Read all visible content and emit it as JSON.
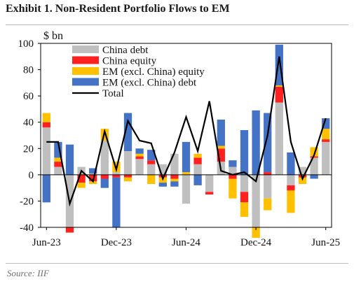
{
  "chart_data": {
    "type": "bar",
    "title": "Exhibit 1. Non-Resident Portfolio Flows to EM",
    "ylabel": "$ bn",
    "ylim": [
      -40,
      100
    ],
    "yticks": [
      -40,
      -20,
      0,
      20,
      40,
      60,
      80,
      100
    ],
    "stacked": true,
    "grid": false,
    "legend_position": "top-left",
    "x_tick_labels": [
      {
        "label": "Jun-23",
        "index": 0
      },
      {
        "label": "Dec-23",
        "index": 6
      },
      {
        "label": "Jun-24",
        "index": 12
      },
      {
        "label": "Dec-24",
        "index": 18
      },
      {
        "label": "Jun-25",
        "index": 24
      }
    ],
    "categories": [
      "2023-06",
      "2023-07",
      "2023-08",
      "2023-09",
      "2023-10",
      "2023-11",
      "2023-12",
      "2024-01",
      "2024-02",
      "2024-03",
      "2024-04",
      "2024-05",
      "2024-06",
      "2024-07",
      "2024-08",
      "2024-09",
      "2024-10",
      "2024-11",
      "2024-12",
      "2025-01",
      "2025-02",
      "2025-03",
      "2025-04",
      "2025-05",
      "2025-06"
    ],
    "series": [
      {
        "name": "China debt",
        "color": "#bfbfbf",
        "values": [
          36,
          6,
          -40,
          6,
          1,
          26,
          2,
          18,
          12,
          8,
          8,
          16,
          -22,
          8,
          -13,
          10,
          6,
          -13,
          -40,
          -18,
          55,
          -8,
          6,
          13,
          25
        ]
      },
      {
        "name": "China equity",
        "color": "#ff2020",
        "values": [
          4,
          4,
          -4,
          -6,
          -5,
          -3,
          -2,
          -2,
          2,
          3,
          -2,
          -3,
          0,
          5,
          -2,
          10,
          -3,
          -8,
          0,
          2,
          12,
          -4,
          -2,
          1,
          2
        ]
      },
      {
        "name": "EM (excl. China) equity",
        "color": "#ffc000",
        "values": [
          7,
          3,
          0,
          -4,
          -2,
          9,
          8,
          -3,
          2,
          -7,
          -4,
          -2,
          2,
          3,
          0,
          2,
          -15,
          -11,
          -8,
          -9,
          1,
          -17,
          -5,
          7,
          8
        ]
      },
      {
        "name": "EM (excl. China) debt",
        "color": "#4472c4",
        "values": [
          -21,
          12,
          23,
          0,
          4,
          -7,
          -38,
          29,
          4,
          8,
          -3,
          -4,
          23,
          -8,
          0,
          20,
          5,
          34,
          49,
          45,
          31,
          17,
          0,
          -3,
          8
        ]
      },
      {
        "name": "Total",
        "type": "line",
        "color": "#000000",
        "values": [
          25,
          25,
          -22,
          3,
          -5,
          33,
          4,
          41,
          26,
          24,
          -3,
          17,
          44,
          18,
          56,
          3,
          0,
          2,
          -5,
          30,
          90,
          25,
          -3,
          15,
          43
        ]
      }
    ]
  },
  "source": "Source: IIF"
}
